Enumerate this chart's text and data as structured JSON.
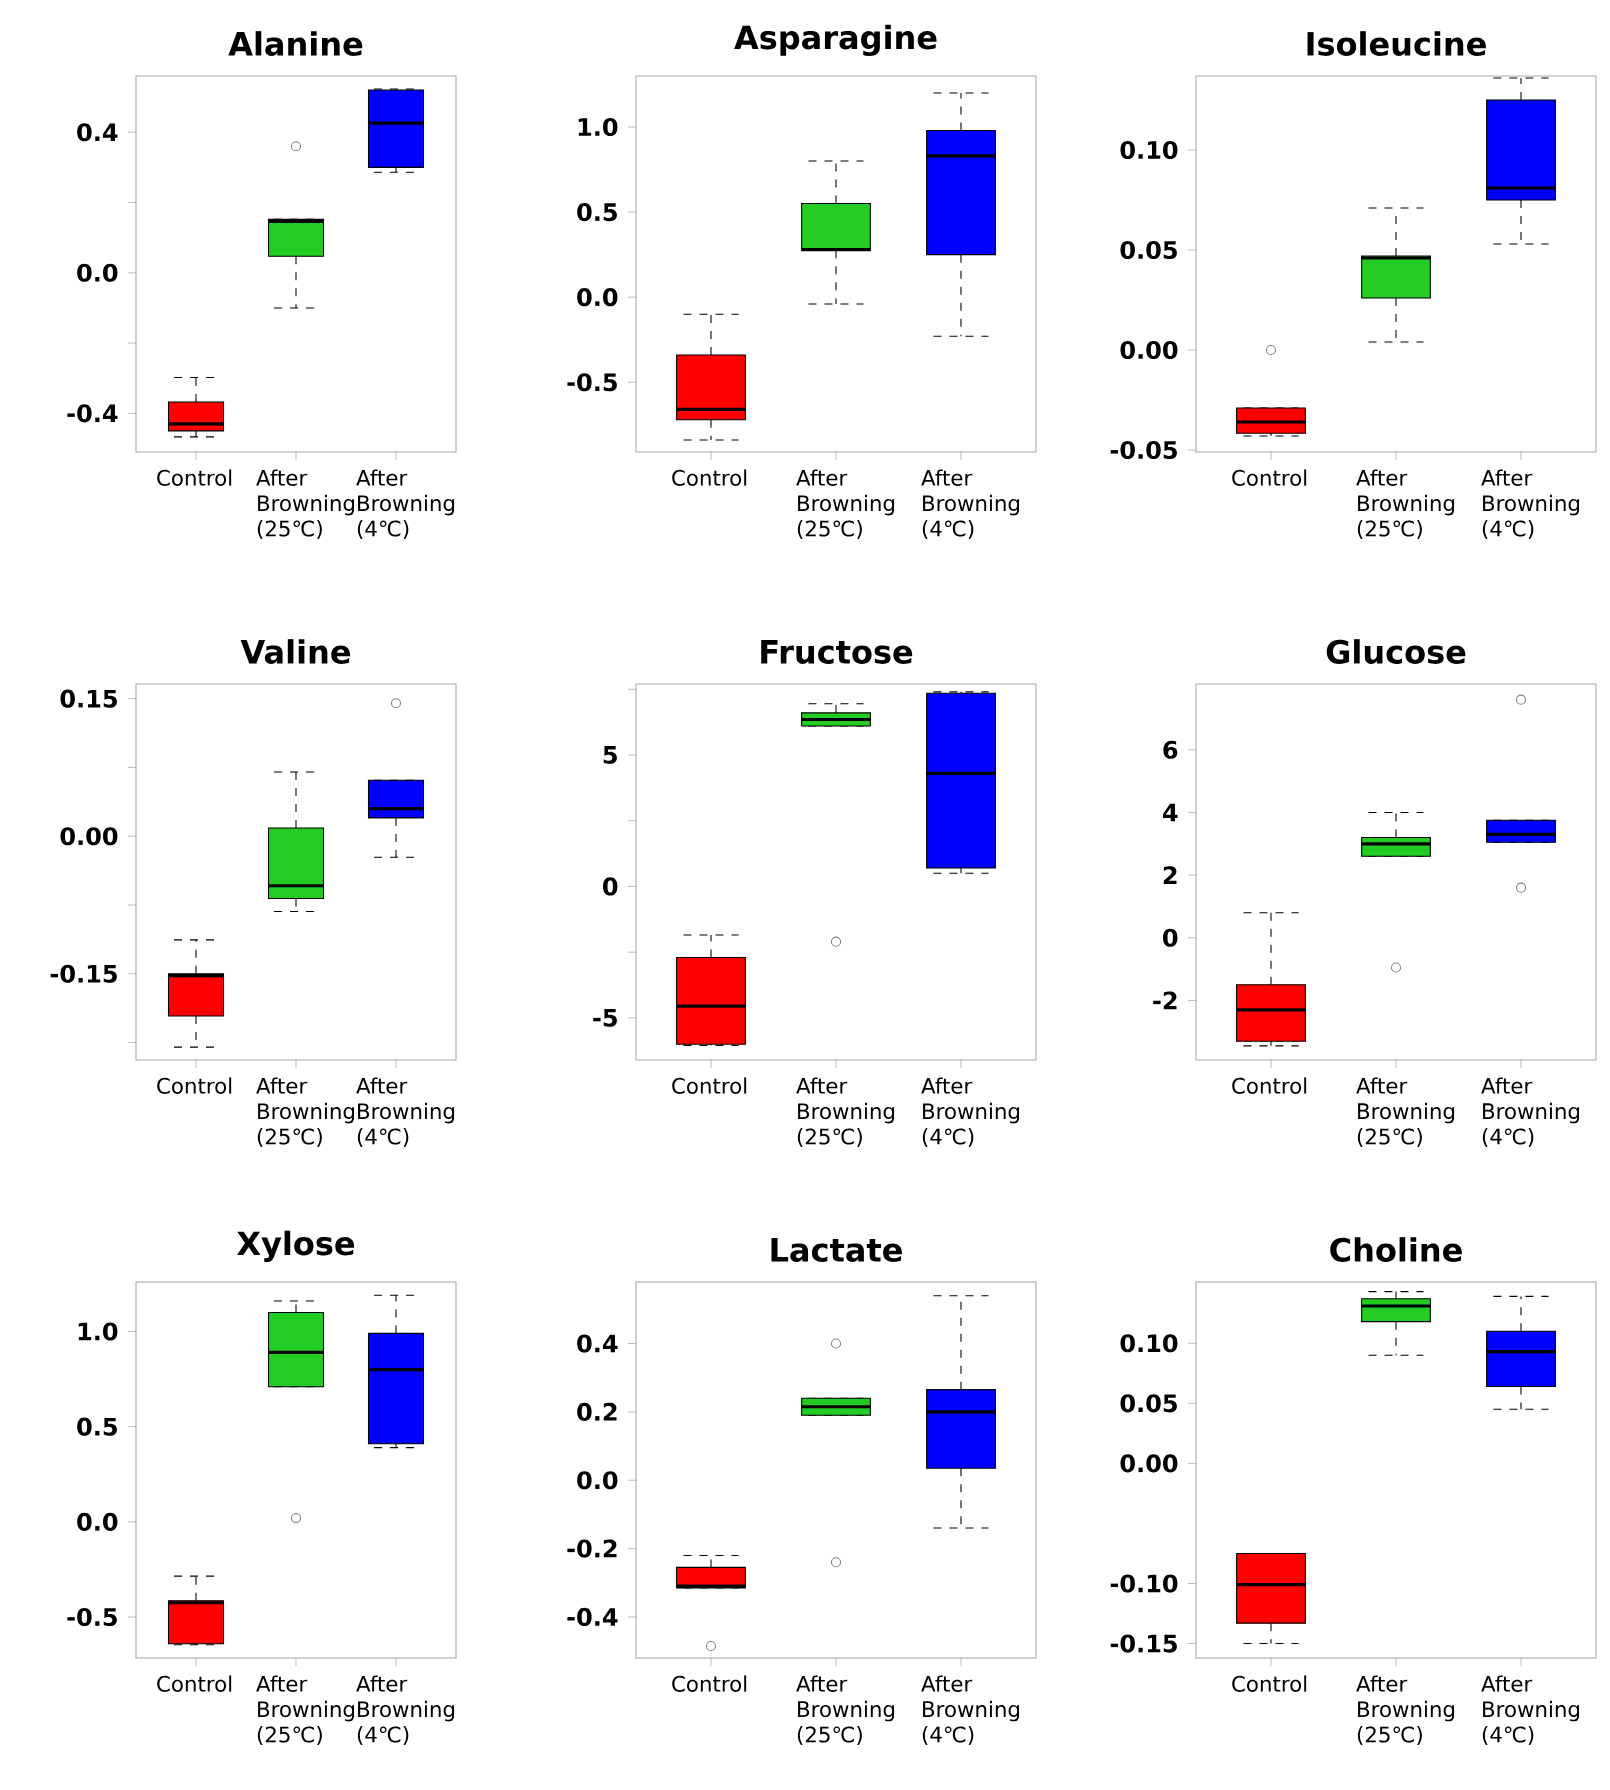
{
  "chart_data": [
    {
      "type": "box",
      "title": "Alanine",
      "categories": [
        "Control",
        "After Browning (25℃)",
        "After Browning (4℃)"
      ],
      "colors": [
        "#ff0000",
        "#22cc22",
        "#0000ff"
      ],
      "ylim": [
        -0.51,
        0.56
      ],
      "yticks": [
        {
          "value": -0.4,
          "label": "-0.4"
        },
        {
          "value": -0.2,
          "label": null
        },
        {
          "value": 0,
          "label": "0.0"
        },
        {
          "value": 0.2,
          "label": null
        },
        {
          "value": 0.4,
          "label": "0.4"
        }
      ],
      "boxes": [
        {
          "low": -0.467,
          "q1": -0.45,
          "median": -0.43,
          "q3": -0.368,
          "high": -0.298
        },
        {
          "low": -0.1,
          "q1": 0.047,
          "median": 0.146,
          "q3": 0.152,
          "high": 0.152,
          "outliers": [
            0.36
          ]
        },
        {
          "low": 0.286,
          "q1": 0.3,
          "median": 0.426,
          "q3": 0.52,
          "high": 0.523
        }
      ]
    },
    {
      "type": "box",
      "title": "Asparagine",
      "categories": [
        "Control",
        "After Browning (25℃)",
        "After Browning (4℃)"
      ],
      "colors": [
        "#ff0000",
        "#22cc22",
        "#0000ff"
      ],
      "ylim": [
        -0.91,
        1.3
      ],
      "yticks": [
        {
          "value": -0.5,
          "label": "-0.5"
        },
        {
          "value": 0,
          "label": "0.0"
        },
        {
          "value": 0.5,
          "label": "0.5"
        },
        {
          "value": 1.0,
          "label": "1.0"
        }
      ],
      "boxes": [
        {
          "low": -0.84,
          "q1": -0.72,
          "median": -0.66,
          "q3": -0.34,
          "high": -0.1
        },
        {
          "low": -0.04,
          "q1": 0.275,
          "median": 0.28,
          "q3": 0.55,
          "high": 0.8
        },
        {
          "low": -0.23,
          "q1": 0.25,
          "median": 0.83,
          "q3": 0.98,
          "high": 1.2
        }
      ]
    },
    {
      "type": "box",
      "title": "Isoleucine",
      "categories": [
        "Control",
        "After Browning (25℃)",
        "After Browning (4℃)"
      ],
      "colors": [
        "#ff0000",
        "#22cc22",
        "#0000ff"
      ],
      "ylim": [
        -0.051,
        0.137
      ],
      "yticks": [
        {
          "value": -0.05,
          "label": "-0.05"
        },
        {
          "value": 0,
          "label": "0.00"
        },
        {
          "value": 0.05,
          "label": "0.05"
        },
        {
          "value": 0.1,
          "label": "0.10"
        }
      ],
      "boxes": [
        {
          "low": -0.043,
          "q1": -0.0416,
          "median": -0.036,
          "q3": -0.029,
          "high": -0.029,
          "outliers": [
            0.0
          ]
        },
        {
          "low": 0.004,
          "q1": 0.026,
          "median": 0.046,
          "q3": 0.047,
          "high": 0.071
        },
        {
          "low": 0.053,
          "q1": 0.075,
          "median": 0.081,
          "q3": 0.125,
          "high": 0.136
        }
      ]
    },
    {
      "type": "box",
      "title": "Valine",
      "categories": [
        "Control",
        "After Browning (25℃)",
        "After Browning (4℃)"
      ],
      "colors": [
        "#ff0000",
        "#22cc22",
        "#0000ff"
      ],
      "ylim": [
        -0.244,
        0.166
      ],
      "yticks": [
        {
          "value": -0.225,
          "label": null
        },
        {
          "value": -0.15,
          "label": "-0.15"
        },
        {
          "value": -0.075,
          "label": null
        },
        {
          "value": 0,
          "label": "0.00"
        },
        {
          "value": 0.075,
          "label": null
        },
        {
          "value": 0.15,
          "label": "0.15"
        }
      ],
      "boxes": [
        {
          "low": -0.23,
          "q1": -0.196,
          "median": -0.152,
          "q3": -0.15,
          "high": -0.113
        },
        {
          "low": -0.082,
          "q1": -0.068,
          "median": -0.054,
          "q3": 0.009,
          "high": 0.07
        },
        {
          "low": -0.023,
          "q1": 0.02,
          "median": 0.03,
          "q3": 0.061,
          "high": 0.061,
          "outliers": [
            0.145
          ]
        }
      ]
    },
    {
      "type": "box",
      "title": "Fructose",
      "categories": [
        "Control",
        "After Browning (25℃)",
        "After Browning (4℃)"
      ],
      "colors": [
        "#ff0000",
        "#22cc22",
        "#0000ff"
      ],
      "ylim": [
        -6.6,
        7.7
      ],
      "yticks": [
        -5,
        {
          "value": -2.5,
          "label": null
        },
        0,
        {
          "value": 2.5,
          "label": null
        },
        5,
        {
          "value": 7.5,
          "label": null
        }
      ],
      "boxes": [
        {
          "low": -6.05,
          "q1": -6.0,
          "median": -4.55,
          "q3": -2.7,
          "high": -1.85
        },
        {
          "low": 6.1,
          "q1": 6.1,
          "median": 6.35,
          "q3": 6.6,
          "high": 6.95,
          "outliers": [
            -2.1
          ]
        },
        {
          "low": 0.5,
          "q1": 0.7,
          "median": 4.3,
          "q3": 7.35,
          "high": 7.4
        }
      ]
    },
    {
      "type": "box",
      "title": "Glucose",
      "categories": [
        "Control",
        "After Browning (25℃)",
        "After Browning (4℃)"
      ],
      "colors": [
        "#ff0000",
        "#22cc22",
        "#0000ff"
      ],
      "ylim": [
        -3.9,
        8.1
      ],
      "yticks": [
        -2,
        0,
        2,
        4,
        6
      ],
      "boxes": [
        {
          "low": -3.45,
          "q1": -3.3,
          "median": -2.3,
          "q3": -1.5,
          "high": 0.8
        },
        {
          "low": 2.6,
          "q1": 2.6,
          "median": 3.0,
          "q3": 3.2,
          "high": 4.0,
          "outliers": [
            -0.95
          ]
        },
        {
          "low": 3.05,
          "q1": 3.05,
          "median": 3.3,
          "q3": 3.75,
          "high": 3.75,
          "outliers": [
            1.6,
            7.6
          ]
        }
      ]
    },
    {
      "type": "box",
      "title": "Xylose",
      "categories": [
        "Control",
        "After Browning (25℃)",
        "After Browning (4℃)"
      ],
      "colors": [
        "#ff0000",
        "#22cc22",
        "#0000ff"
      ],
      "ylim": [
        -0.715,
        1.26
      ],
      "yticks": [
        {
          "value": -0.5,
          "label": "-0.5"
        },
        {
          "value": 0,
          "label": "0.0"
        },
        {
          "value": 0.5,
          "label": "0.5"
        },
        {
          "value": 1.0,
          "label": "1.0"
        }
      ],
      "boxes": [
        {
          "low": -0.645,
          "q1": -0.64,
          "median": -0.425,
          "q3": -0.415,
          "high": -0.285
        },
        {
          "low": 0.71,
          "q1": 0.71,
          "median": 0.89,
          "q3": 1.1,
          "high": 1.16,
          "outliers": [
            0.02
          ]
        },
        {
          "low": 0.39,
          "q1": 0.41,
          "median": 0.8,
          "q3": 0.99,
          "high": 1.19
        }
      ]
    },
    {
      "type": "box",
      "title": "Lactate",
      "categories": [
        "Control",
        "After Browning (25℃)",
        "After Browning (4℃)"
      ],
      "colors": [
        "#ff0000",
        "#22cc22",
        "#0000ff"
      ],
      "ylim": [
        -0.52,
        0.58
      ],
      "yticks": [
        {
          "value": -0.4,
          "label": "-0.4"
        },
        {
          "value": -0.2,
          "label": "-0.2"
        },
        {
          "value": 0,
          "label": "0.0"
        },
        {
          "value": 0.2,
          "label": "0.2"
        },
        {
          "value": 0.4,
          "label": "0.4"
        }
      ],
      "boxes": [
        {
          "low": -0.315,
          "q1": -0.315,
          "median": -0.31,
          "q3": -0.255,
          "high": -0.22,
          "outliers": [
            -0.485
          ]
        },
        {
          "low": 0.19,
          "q1": 0.19,
          "median": 0.215,
          "q3": 0.24,
          "high": 0.24,
          "outliers": [
            0.4,
            -0.24
          ]
        },
        {
          "low": -0.14,
          "q1": 0.035,
          "median": 0.2,
          "q3": 0.265,
          "high": 0.54
        }
      ]
    },
    {
      "type": "box",
      "title": "Choline",
      "categories": [
        "Control",
        "After Browning (25℃)",
        "After Browning (4℃)"
      ],
      "colors": [
        "#ff0000",
        "#22cc22",
        "#0000ff"
      ],
      "ylim": [
        -0.162,
        0.151
      ],
      "yticks": [
        {
          "value": -0.15,
          "label": "-0.15"
        },
        {
          "value": -0.1,
          "label": "-0.10"
        },
        {
          "value": 0,
          "label": "0.00"
        },
        {
          "value": 0.05,
          "label": "0.05"
        },
        {
          "value": 0.1,
          "label": "0.10"
        }
      ],
      "boxes": [
        {
          "low": -0.15,
          "q1": -0.133,
          "median": -0.101,
          "q3": -0.075,
          "high": -0.075
        },
        {
          "low": 0.09,
          "q1": 0.118,
          "median": 0.131,
          "q3": 0.137,
          "high": 0.143
        },
        {
          "low": 0.045,
          "q1": 0.064,
          "median": 0.093,
          "q3": 0.11,
          "high": 0.139
        }
      ]
    }
  ]
}
